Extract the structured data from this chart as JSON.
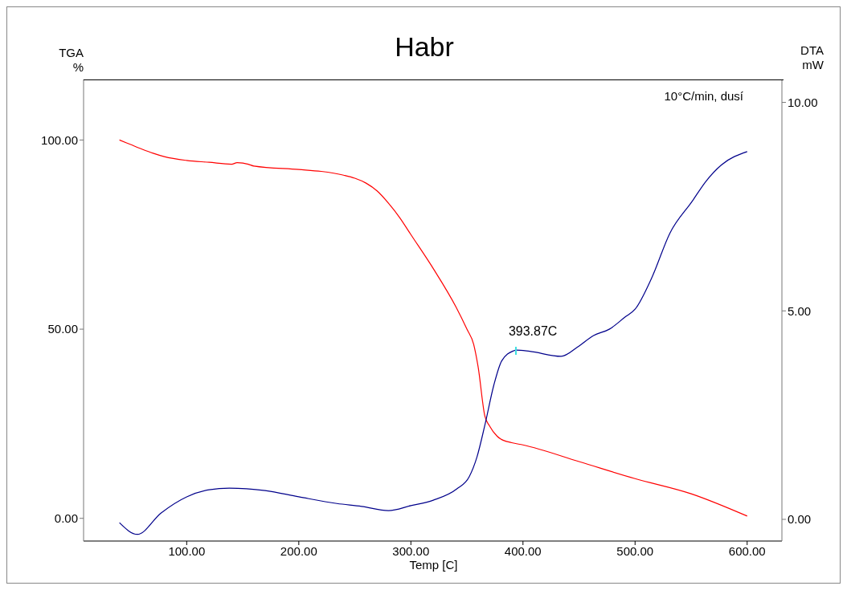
{
  "chart_data": {
    "type": "line",
    "title": "Habr",
    "xlabel": "Temp [C]",
    "ylabel": "TGA %",
    "y2label": "DTA mW",
    "annotations": [
      "10°C/min, dusí",
      "393.87C"
    ],
    "xlim": [
      8,
      631
    ],
    "xticks": [
      {
        "value": 100,
        "label": "100.00"
      },
      {
        "value": 200,
        "label": "200.00"
      },
      {
        "value": 300,
        "label": "300.00"
      },
      {
        "value": 400,
        "label": "400.00"
      },
      {
        "value": 500,
        "label": "500.00"
      },
      {
        "value": 600,
        "label": "600.00"
      }
    ],
    "ylim": [
      -6,
      116
    ],
    "yticks": [
      {
        "value": 0,
        "label": "0.00"
      },
      {
        "value": 50,
        "label": "50.00"
      },
      {
        "value": 100,
        "label": "100.00"
      }
    ],
    "y2lim": [
      -0.52,
      10.55
    ],
    "y2ticks": [
      {
        "value": 0,
        "label": "0.00"
      },
      {
        "value": 5,
        "label": "5.00"
      },
      {
        "value": 10,
        "label": "10.00"
      }
    ],
    "marker": "none",
    "line_style": "solid",
    "series": [
      {
        "color": "#ff0000",
        "x": [
          40,
          50,
          60,
          70,
          80,
          100,
          120,
          140,
          145,
          155,
          160,
          200,
          220,
          240,
          250,
          260,
          270,
          280,
          290,
          300,
          320,
          340,
          350,
          356,
          360,
          366,
          370,
          377,
          380,
          390,
          400,
          450,
          500,
          550,
          600
        ],
        "values": [
          100,
          98.8,
          97.6,
          96.5,
          95.6,
          94.6,
          94.1,
          93.6,
          94,
          93.6,
          93.1,
          92.2,
          91.7,
          90.7,
          89.9,
          88.6,
          86.5,
          83.3,
          79.5,
          75,
          66,
          56,
          50,
          46,
          40,
          27,
          24.5,
          21.7,
          21,
          20,
          19.4,
          15,
          10.5,
          6.5,
          0.6
        ]
      },
      {
        "color": "#00008b",
        "axis": "y2",
        "x": [
          40,
          56,
          77,
          100,
          120,
          138,
          170,
          200,
          234,
          256,
          280,
          300,
          320,
          341,
          352,
          359,
          366,
          374,
          381,
          391.4,
          393.87,
          406,
          434,
          449,
          463,
          477,
          491,
          500,
          515,
          531,
          551,
          563,
          577,
          600
        ],
        "values": [
          -0.08,
          -0.36,
          0.15,
          0.54,
          0.71,
          0.75,
          0.69,
          0.54,
          0.38,
          0.31,
          0.21,
          0.33,
          0.46,
          0.73,
          1.02,
          1.5,
          2.26,
          3.22,
          3.8,
          4.04,
          4.06,
          4.03,
          3.91,
          4.14,
          4.41,
          4.56,
          4.85,
          5.04,
          5.8,
          6.86,
          7.63,
          8.1,
          8.5,
          8.82
        ]
      }
    ]
  }
}
